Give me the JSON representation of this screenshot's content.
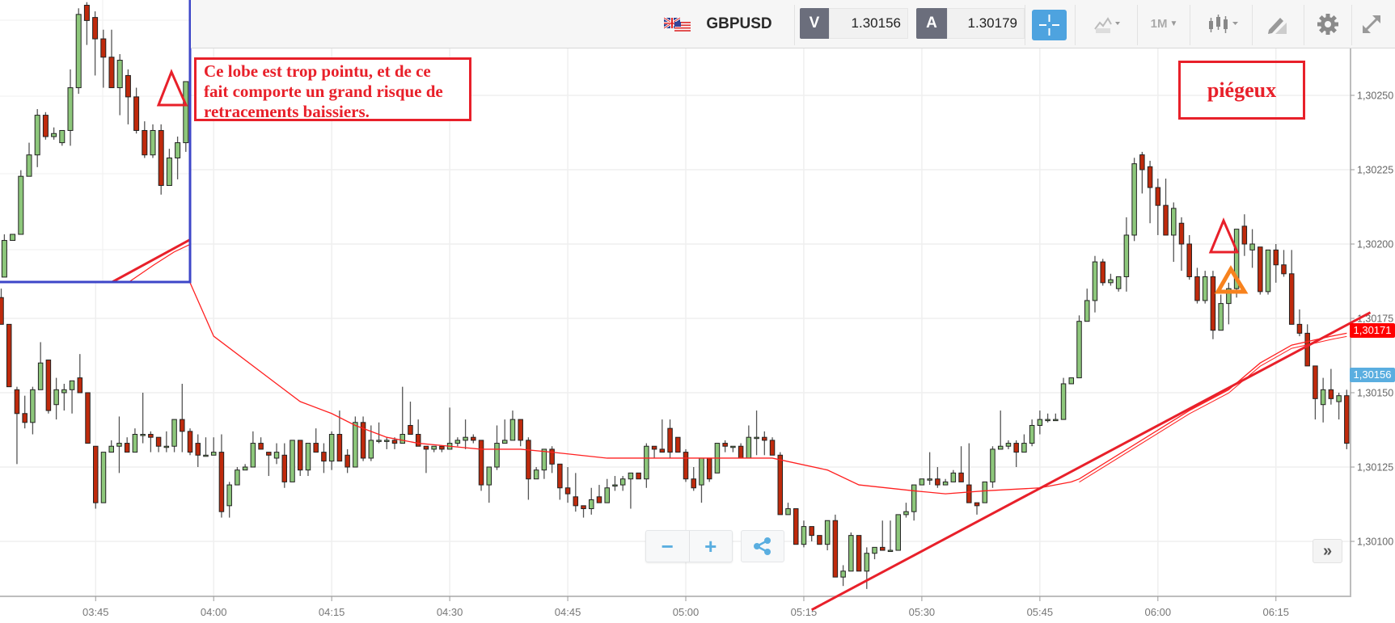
{
  "toolbar": {
    "flag_icon": "uk-us-flag-icon",
    "symbol": "GBPUSD",
    "bid_label": "V",
    "bid_value": "1.30156",
    "ask_label": "A",
    "ask_value": "1.30179",
    "crosshair_icon": "crosshair-icon",
    "chart_type_icon": "chart-type-icon",
    "timeframe": "1M",
    "candle_icon": "candlestick-icon",
    "draw_icon": "pencil-icon",
    "settings_icon": "gear-icon",
    "fullscreen_icon": "expand-icon",
    "accent_color": "#4ea3df"
  },
  "annotations": {
    "note_lines": [
      "Ce lobe est trop pointu, et de ce",
      "fait comporte un grand risque de",
      "retracements baissiers."
    ],
    "note2": "piégeux",
    "annotation_color": "#e8202a",
    "second_triangle_color": "#f7821e",
    "inset_border_color": "#3d46c8"
  },
  "controls": {
    "zoom_out": "−",
    "zoom_in": "+",
    "share_icon": "share-icon",
    "scroll_right": "»"
  },
  "chart_data": {
    "type": "candlestick",
    "symbol": "GBPUSD",
    "interval": "1M",
    "start_time": "03:33",
    "candle_colors": {
      "up": "#8dc77b",
      "down": "#bf2a0c"
    },
    "candles_ohlc": [
      [
        1.30182,
        1.30185,
        1.30173,
        1.30173
      ],
      [
        1.30173,
        1.30173,
        1.30152,
        1.30152
      ],
      [
        1.30151,
        1.30152,
        1.30126,
        1.30143
      ],
      [
        1.30143,
        1.30149,
        1.30138,
        1.3014
      ],
      [
        1.3014,
        1.30152,
        1.30136,
        1.30151
      ],
      [
        1.30151,
        1.30167,
        1.30151,
        1.3016
      ],
      [
        1.30161,
        1.30161,
        1.30143,
        1.30144
      ],
      [
        1.30146,
        1.30155,
        1.30141,
        1.30151
      ],
      [
        1.3015,
        1.30153,
        1.30144,
        1.30151
      ],
      [
        1.30151,
        1.30154,
        1.30143,
        1.30154
      ],
      [
        1.30155,
        1.30163,
        1.3015,
        1.3015
      ],
      [
        1.3015,
        1.3015,
        1.30133,
        1.30133
      ],
      [
        1.30132,
        1.30132,
        1.30111,
        1.30113
      ],
      [
        1.30113,
        1.3013,
        1.30113,
        1.3013
      ],
      [
        1.3013,
        1.30134,
        1.3013,
        1.30132
      ],
      [
        1.30132,
        1.30142,
        1.30123,
        1.30133
      ],
      [
        1.30133,
        1.30135,
        1.3013,
        1.3013
      ],
      [
        1.3013,
        1.30138,
        1.3013,
        1.30136
      ],
      [
        1.30136,
        1.3015,
        1.30133,
        1.30136
      ],
      [
        1.30136,
        1.30137,
        1.3013,
        1.30135
      ],
      [
        1.30135,
        1.30135,
        1.3013,
        1.30132
      ],
      [
        1.30132,
        1.30137,
        1.3013,
        1.30132
      ],
      [
        1.30132,
        1.30141,
        1.3013,
        1.30141
      ],
      [
        1.30141,
        1.30153,
        1.3013,
        1.30137
      ],
      [
        1.30137,
        1.30138,
        1.30129,
        1.3013
      ],
      [
        1.30133,
        1.30136,
        1.30125,
        1.30129
      ],
      [
        1.30129,
        1.30135,
        1.30129,
        1.30129
      ],
      [
        1.30129,
        1.30135,
        1.30129,
        1.3013
      ],
      [
        1.3013,
        1.30136,
        1.30108,
        1.3011
      ],
      [
        1.30112,
        1.3012,
        1.30108,
        1.30119
      ],
      [
        1.30119,
        1.30125,
        1.30119,
        1.30124
      ],
      [
        1.30124,
        1.30126,
        1.30124,
        1.30125
      ],
      [
        1.30125,
        1.30137,
        1.30125,
        1.30133
      ],
      [
        1.30133,
        1.30135,
        1.30131,
        1.30131
      ],
      [
        1.3013,
        1.3013,
        1.30122,
        1.30129
      ],
      [
        1.30128,
        1.30133,
        1.30126,
        1.3013
      ],
      [
        1.30129,
        1.30133,
        1.30118,
        1.3012
      ],
      [
        1.3012,
        1.30134,
        1.3012,
        1.30134
      ],
      [
        1.30134,
        1.30134,
        1.30122,
        1.30124
      ],
      [
        1.30124,
        1.30133,
        1.30122,
        1.30133
      ],
      [
        1.30133,
        1.30138,
        1.3013,
        1.3013
      ],
      [
        1.3013,
        1.30133,
        1.30123,
        1.30127
      ],
      [
        1.30127,
        1.30137,
        1.30124,
        1.30136
      ],
      [
        1.30136,
        1.30144,
        1.30127,
        1.30127
      ],
      [
        1.30129,
        1.30131,
        1.30123,
        1.30125
      ],
      [
        1.30125,
        1.30142,
        1.30125,
        1.3014
      ],
      [
        1.3014,
        1.30142,
        1.30127,
        1.30128
      ],
      [
        1.30128,
        1.30139,
        1.30127,
        1.30134
      ],
      [
        1.30134,
        1.3014,
        1.30133,
        1.30134
      ],
      [
        1.30134,
        1.30135,
        1.30131,
        1.30134
      ],
      [
        1.30134,
        1.30135,
        1.30131,
        1.30133
      ],
      [
        1.30133,
        1.30152,
        1.30133,
        1.30136
      ],
      [
        1.30139,
        1.30147,
        1.30136,
        1.30136
      ],
      [
        1.30136,
        1.30141,
        1.30132,
        1.30132
      ],
      [
        1.30132,
        1.30132,
        1.30123,
        1.30131
      ],
      [
        1.30131,
        1.30132,
        1.3013,
        1.30132
      ],
      [
        1.30132,
        1.30132,
        1.3013,
        1.30131
      ],
      [
        1.30131,
        1.30145,
        1.30131,
        1.30133
      ],
      [
        1.30133,
        1.30135,
        1.30132,
        1.30134
      ],
      [
        1.30134,
        1.30141,
        1.30131,
        1.30135
      ],
      [
        1.30135,
        1.30136,
        1.30133,
        1.30134
      ],
      [
        1.30134,
        1.30134,
        1.30117,
        1.30119
      ],
      [
        1.30119,
        1.30125,
        1.30113,
        1.30125
      ],
      [
        1.30125,
        1.30139,
        1.30124,
        1.30133
      ],
      [
        1.30133,
        1.30141,
        1.30133,
        1.30134
      ],
      [
        1.30134,
        1.30144,
        1.30134,
        1.30141
      ],
      [
        1.30141,
        1.30141,
        1.30132,
        1.30134
      ],
      [
        1.30134,
        1.30135,
        1.30114,
        1.30121
      ],
      [
        1.30121,
        1.30125,
        1.30121,
        1.30124
      ],
      [
        1.30124,
        1.30131,
        1.30121,
        1.30131
      ],
      [
        1.30131,
        1.30132,
        1.30123,
        1.30126
      ],
      [
        1.30126,
        1.30126,
        1.30114,
        1.30118
      ],
      [
        1.30118,
        1.30125,
        1.30113,
        1.30116
      ],
      [
        1.30115,
        1.30123,
        1.3011,
        1.30112
      ],
      [
        1.30112,
        1.30112,
        1.30108,
        1.30111
      ],
      [
        1.30111,
        1.30118,
        1.30109,
        1.30114
      ],
      [
        1.30115,
        1.30119,
        1.30113,
        1.30113
      ],
      [
        1.30113,
        1.30121,
        1.30113,
        1.30118
      ],
      [
        1.30119,
        1.30122,
        1.30117,
        1.30119
      ],
      [
        1.30119,
        1.30122,
        1.30117,
        1.30121
      ],
      [
        1.30121,
        1.30123,
        1.30111,
        1.30123
      ],
      [
        1.30123,
        1.30123,
        1.30121,
        1.30121
      ],
      [
        1.30121,
        1.30133,
        1.30118,
        1.30132
      ],
      [
        1.30132,
        1.30132,
        1.30128,
        1.30131
      ],
      [
        1.30131,
        1.30141,
        1.3013,
        1.3013
      ],
      [
        1.30138,
        1.30141,
        1.30128,
        1.3013
      ],
      [
        1.30135,
        1.30135,
        1.3013,
        1.3013
      ],
      [
        1.3013,
        1.30131,
        1.3012,
        1.30121
      ],
      [
        1.30121,
        1.30125,
        1.30117,
        1.30118
      ],
      [
        1.30119,
        1.30128,
        1.30113,
        1.30128
      ],
      [
        1.30128,
        1.30128,
        1.3012,
        1.30121
      ],
      [
        1.30123,
        1.30133,
        1.30123,
        1.30133
      ],
      [
        1.30133,
        1.30134,
        1.3013,
        1.30132
      ],
      [
        1.30132,
        1.30132,
        1.3013,
        1.30132
      ],
      [
        1.30132,
        1.30133,
        1.30128,
        1.30128
      ],
      [
        1.30128,
        1.30139,
        1.30128,
        1.30135
      ],
      [
        1.30135,
        1.30144,
        1.30129,
        1.30135
      ],
      [
        1.30135,
        1.30137,
        1.30129,
        1.30134
      ],
      [
        1.30134,
        1.30135,
        1.30129,
        1.30129
      ],
      [
        1.30129,
        1.3013,
        1.30109,
        1.30109
      ],
      [
        1.30109,
        1.30113,
        1.30109,
        1.30111
      ],
      [
        1.30111,
        1.30111,
        1.30099,
        1.30099
      ],
      [
        1.30099,
        1.30107,
        1.30098,
        1.30105
      ],
      [
        1.30105,
        1.30105,
        1.301,
        1.30102
      ],
      [
        1.30102,
        1.30102,
        1.30099,
        1.30099
      ],
      [
        1.30099,
        1.30107,
        1.30097,
        1.30107
      ],
      [
        1.30107,
        1.30109,
        1.30088,
        1.30088
      ],
      [
        1.30088,
        1.30092,
        1.30085,
        1.3009
      ],
      [
        1.3009,
        1.30103,
        1.3009,
        1.30102
      ],
      [
        1.30102,
        1.30102,
        1.3009,
        1.3009
      ],
      [
        1.3009,
        1.30098,
        1.30084,
        1.30096
      ],
      [
        1.30096,
        1.30098,
        1.30094,
        1.30098
      ],
      [
        1.30098,
        1.30107,
        1.30097,
        1.30097
      ],
      [
        1.30097,
        1.30107,
        1.30097,
        1.30097
      ],
      [
        1.30097,
        1.30109,
        1.30097,
        1.30109
      ],
      [
        1.30109,
        1.30113,
        1.30108,
        1.3011
      ],
      [
        1.3011,
        1.30119,
        1.30107,
        1.30119
      ],
      [
        1.30119,
        1.30121,
        1.30119,
        1.30121
      ],
      [
        1.30121,
        1.3013,
        1.30119,
        1.30121
      ],
      [
        1.30121,
        1.30125,
        1.30118,
        1.30119
      ],
      [
        1.30119,
        1.30121,
        1.30119,
        1.3012
      ],
      [
        1.3012,
        1.30124,
        1.3012,
        1.30123
      ],
      [
        1.30123,
        1.30132,
        1.3012,
        1.3012
      ],
      [
        1.30119,
        1.30133,
        1.30113,
        1.30113
      ],
      [
        1.30113,
        1.30113,
        1.30109,
        1.30112
      ],
      [
        1.30113,
        1.3012,
        1.30113,
        1.3012
      ],
      [
        1.3012,
        1.30132,
        1.30118,
        1.30131
      ],
      [
        1.30131,
        1.30144,
        1.30131,
        1.30132
      ],
      [
        1.30132,
        1.30134,
        1.30131,
        1.30133
      ],
      [
        1.30133,
        1.30134,
        1.30125,
        1.3013
      ],
      [
        1.3013,
        1.30136,
        1.3013,
        1.30133
      ],
      [
        1.30133,
        1.30141,
        1.30132,
        1.30139
      ],
      [
        1.30139,
        1.30144,
        1.30136,
        1.30141
      ],
      [
        1.30141,
        1.30143,
        1.3014,
        1.30141
      ],
      [
        1.30141,
        1.30143,
        1.30141,
        1.30141
      ],
      [
        1.30141,
        1.30155,
        1.30141,
        1.30153
      ],
      [
        1.30153,
        1.30155,
        1.30153,
        1.30155
      ],
      [
        1.30155,
        1.30176,
        1.30155,
        1.30174
      ],
      [
        1.30174,
        1.30185,
        1.30174,
        1.30181
      ],
      [
        1.30181,
        1.30196,
        1.30177,
        1.30194
      ],
      [
        1.30194,
        1.30195,
        1.30186,
        1.30187
      ],
      [
        1.30187,
        1.3019,
        1.30186,
        1.30188
      ],
      [
        1.30185,
        1.30189,
        1.30184,
        1.30189
      ],
      [
        1.30189,
        1.30209,
        1.30184,
        1.30203
      ],
      [
        1.30203,
        1.30229,
        1.30201,
        1.30227
      ],
      [
        1.3023,
        1.30231,
        1.30217,
        1.30225
      ],
      [
        1.30226,
        1.30228,
        1.30207,
        1.30219
      ],
      [
        1.30219,
        1.30222,
        1.30203,
        1.30213
      ],
      [
        1.30213,
        1.30222,
        1.30203,
        1.30203
      ],
      [
        1.30203,
        1.30214,
        1.30194,
        1.30212
      ],
      [
        1.30207,
        1.30209,
        1.30191,
        1.302
      ],
      [
        1.302,
        1.30203,
        1.30188,
        1.30189
      ],
      [
        1.30189,
        1.30192,
        1.3018,
        1.30181
      ],
      [
        1.30181,
        1.30191,
        1.3018,
        1.30189
      ],
      [
        1.30189,
        1.30191,
        1.30168,
        1.30171
      ],
      [
        1.30171,
        1.30183,
        1.30171,
        1.3018
      ],
      [
        1.3018,
        1.30187,
        1.30173,
        1.30185
      ],
      [
        1.30185,
        1.30205,
        1.30182,
        1.30205
      ],
      [
        1.30206,
        1.3021,
        1.30196,
        1.302
      ],
      [
        1.30198,
        1.30205,
        1.30192,
        1.302
      ],
      [
        1.30199,
        1.30199,
        1.30183,
        1.30184
      ],
      [
        1.30184,
        1.30198,
        1.30183,
        1.30198
      ],
      [
        1.30198,
        1.302,
        1.30187,
        1.30193
      ],
      [
        1.30193,
        1.30198,
        1.30189,
        1.3019
      ],
      [
        1.3019,
        1.30198,
        1.30173,
        1.30173
      ],
      [
        1.30173,
        1.30178,
        1.30169,
        1.3017
      ],
      [
        1.3017,
        1.30173,
        1.30159,
        1.30159
      ],
      [
        1.30159,
        1.30159,
        1.30141,
        1.30148
      ],
      [
        1.30146,
        1.30155,
        1.3014,
        1.30151
      ],
      [
        1.30151,
        1.30158,
        1.30146,
        1.30148
      ],
      [
        1.30147,
        1.3015,
        1.30141,
        1.30149
      ],
      [
        1.30149,
        1.30151,
        1.30131,
        1.30133
      ]
    ],
    "moving_average": {
      "color": "#ff2020",
      "points": [
        [
          "03:57",
          1.30187
        ],
        [
          "04:00",
          1.30169
        ],
        [
          "04:08",
          1.30153
        ],
        [
          "04:11",
          1.30147
        ],
        [
          "04:15",
          1.30143
        ],
        [
          "04:18",
          1.30139
        ],
        [
          "04:22",
          1.30135
        ],
        [
          "04:26",
          1.30133
        ],
        [
          "04:30",
          1.30132
        ],
        [
          "04:34",
          1.30131
        ],
        [
          "04:39",
          1.30131
        ],
        [
          "04:43",
          1.3013
        ],
        [
          "04:50",
          1.30128
        ],
        [
          "04:59",
          1.30128
        ],
        [
          "05:11",
          1.30128
        ],
        [
          "05:18",
          1.30124
        ],
        [
          "05:22",
          1.30119
        ],
        [
          "05:29",
          1.30117
        ],
        [
          "05:33",
          1.30116
        ],
        [
          "05:38",
          1.30117
        ],
        [
          "05:45",
          1.30118
        ],
        [
          "05:49",
          1.3012
        ],
        [
          "05:50",
          1.30121
        ],
        [
          "06:04",
          1.30144
        ],
        [
          "06:09",
          1.30151
        ],
        [
          "06:13",
          1.3016
        ],
        [
          "06:17",
          1.30166
        ],
        [
          "06:22",
          1.30169
        ],
        [
          "06:24",
          1.3017
        ]
      ]
    },
    "trendline": {
      "color": "#e8202a",
      "points": [
        [
          "05:16",
          1.30077
        ],
        [
          "06:27",
          1.30177
        ]
      ]
    },
    "x_ticks": [
      "03:45",
      "04:00",
      "04:15",
      "04:30",
      "04:45",
      "05:00",
      "05:15",
      "05:30",
      "05:45",
      "06:00",
      "06:15"
    ],
    "y_ticks": [
      {
        "value": 1.3025,
        "label": "1,30250"
      },
      {
        "value": 1.30225,
        "label": "1,30225"
      },
      {
        "value": 1.302,
        "label": "1,30200"
      },
      {
        "value": 1.30175,
        "label": "1,30175"
      },
      {
        "value": 1.3015,
        "label": "1,30150"
      },
      {
        "value": 1.30125,
        "label": "1,30125"
      },
      {
        "value": 1.301,
        "label": "1,30100"
      }
    ],
    "price_labels": [
      {
        "value": 1.30171,
        "label": "1,30171",
        "color": "#ff0000"
      },
      {
        "value": 1.30156,
        "label": "1,30156",
        "color": "#5aaee0"
      }
    ],
    "grid": true
  }
}
